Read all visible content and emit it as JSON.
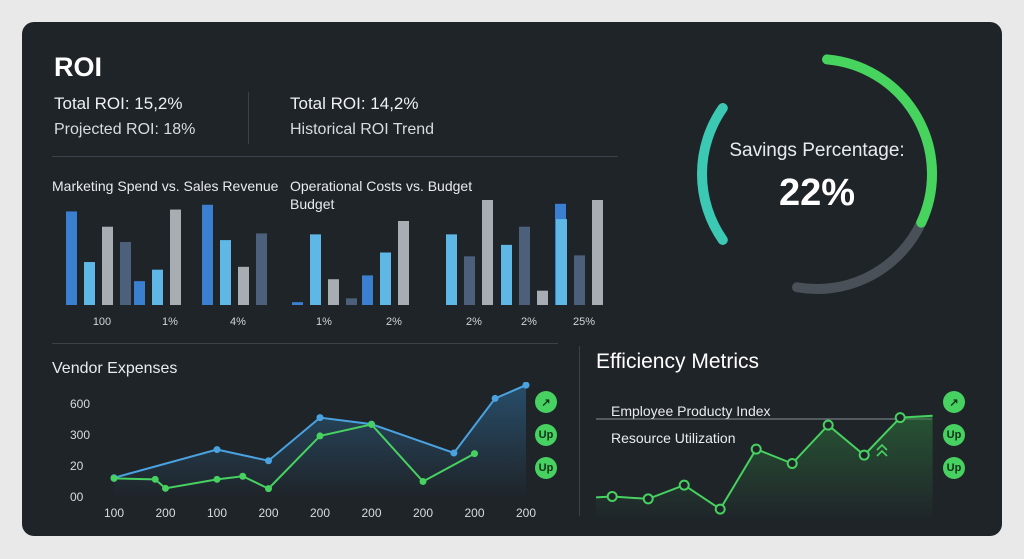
{
  "header": {
    "title": "ROI",
    "total_roi_left": "Total ROI: 15,2%",
    "projected_roi": "Projected ROI: 18%",
    "total_roi_right": "Total ROI: 14,2%",
    "historical_trend": "Historical ROI Trend"
  },
  "gauge": {
    "label": "Savings Percentage:",
    "value_text": "22%",
    "value": 22,
    "colors": {
      "teal": "#3cc9b4",
      "green": "#46d45e",
      "track": "#4a5058"
    }
  },
  "colors": {
    "card_bg": "#1f2429",
    "bar_blue": "#3a7fd0",
    "bar_light_blue": "#5fb7e6",
    "bar_grey": "#a7adb3",
    "bar_slate": "#4c607c",
    "line_blue": "#4aa3e0",
    "line_green": "#47d160"
  },
  "chart_data": [
    {
      "type": "bar",
      "title": "Marketing Spend vs. Sales Revenue",
      "categories": [
        "100",
        "1%",
        "4%"
      ],
      "series_colors": [
        "#3a7fd0",
        "#5fb7e6",
        "#a7adb3",
        "#4c607c"
      ],
      "groups": [
        [
          0.98,
          0.45,
          0.82,
          0.66
        ],
        [
          0.25,
          0.37,
          1.0,
          0.0
        ],
        [
          1.05,
          0.68,
          0.4,
          0.75
        ]
      ],
      "ylim": [
        0,
        1.1
      ]
    },
    {
      "type": "bar",
      "title": "Operational Costs vs. Budget",
      "subtitle": "Budget",
      "categories": [
        "1%",
        "2%"
      ],
      "series_colors": [
        "#3a7fd0",
        "#5fb7e6",
        "#a7adb3",
        "#4c607c"
      ],
      "groups": [
        [
          0.03,
          0.74,
          0.27,
          0.07
        ],
        [
          0.31,
          0.55,
          0.88,
          0.0
        ]
      ],
      "ylim": [
        0,
        1.1
      ]
    },
    {
      "type": "bar",
      "title": "",
      "categories": [
        "2%",
        "2%",
        "25%"
      ],
      "series_colors": [
        "#5fb7e6",
        "#4c607c",
        "#a7adb3",
        "#3a7fd0"
      ],
      "groups": [
        [
          0.74,
          0.51,
          1.1,
          0.0
        ],
        [
          0.63,
          0.82,
          0.15,
          1.06
        ],
        [
          0.9,
          0.52,
          1.1,
          0.0
        ]
      ],
      "ylim": [
        0,
        1.1
      ]
    },
    {
      "type": "line",
      "title": "Vendor Expenses",
      "x": [
        "100",
        "200",
        "100",
        "200",
        "200",
        "200",
        "200",
        "200",
        "200"
      ],
      "y_ticks": [
        "600",
        "300",
        "20",
        "00"
      ],
      "ylim": [
        0,
        3.5
      ],
      "series": [
        {
          "color": "#4aa3e0",
          "area": true,
          "points": [
            [
              0.0,
              0.62
            ],
            [
              2.0,
              1.53
            ],
            [
              3.0,
              1.17
            ],
            [
              4.0,
              2.56
            ],
            [
              5.0,
              2.35
            ],
            [
              6.6,
              1.42
            ],
            [
              7.4,
              3.18
            ],
            [
              8.0,
              3.61
            ]
          ]
        },
        {
          "color": "#47d160",
          "area": false,
          "points": [
            [
              0.0,
              0.6
            ],
            [
              0.8,
              0.57
            ],
            [
              1.0,
              0.28
            ],
            [
              2.0,
              0.57
            ],
            [
              2.5,
              0.67
            ],
            [
              3.0,
              0.27
            ],
            [
              4.0,
              1.97
            ],
            [
              5.0,
              2.34
            ],
            [
              6.0,
              0.5
            ],
            [
              7.0,
              1.4
            ]
          ]
        }
      ],
      "badges": [
        "↗",
        "Up",
        "Up"
      ]
    },
    {
      "type": "line",
      "title": "Efficiency Metrics",
      "series_labels": [
        "Employee Producty Index",
        "Resource Utilization"
      ],
      "ylim": [
        0,
        4.0
      ],
      "series": [
        {
          "color": "#47d160",
          "area": true,
          "points": [
            [
              0.0,
              0.82
            ],
            [
              0.45,
              0.85
            ],
            [
              1.45,
              0.77
            ],
            [
              2.45,
              1.23
            ],
            [
              3.45,
              0.43
            ],
            [
              4.45,
              2.43
            ],
            [
              5.45,
              1.95
            ],
            [
              6.45,
              3.23
            ],
            [
              7.45,
              2.23
            ],
            [
              8.45,
              3.48
            ],
            [
              9.35,
              3.54
            ]
          ]
        }
      ],
      "badges": [
        "↗",
        "Up",
        "Up"
      ]
    }
  ]
}
